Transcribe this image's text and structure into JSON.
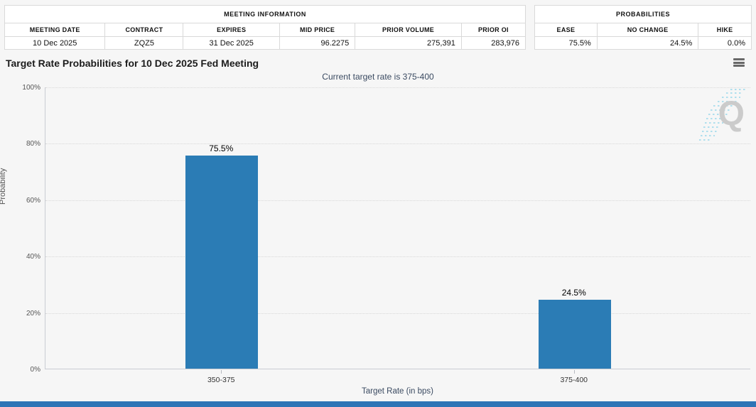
{
  "meeting_info_table": {
    "title": "MEETING INFORMATION",
    "columns": [
      "MEETING DATE",
      "CONTRACT",
      "EXPIRES",
      "MID PRICE",
      "PRIOR VOLUME",
      "PRIOR OI"
    ],
    "row": [
      "10 Dec 2025",
      "ZQZ5",
      "31 Dec 2025",
      "96.2275",
      "275,391",
      "283,976"
    ]
  },
  "probabilities_table": {
    "title": "PROBABILITIES",
    "columns": [
      "EASE",
      "NO CHANGE",
      "HIKE"
    ],
    "row": [
      "75.5%",
      "24.5%",
      "0.0%"
    ]
  },
  "chart_data": {
    "type": "bar",
    "title": "Target Rate Probabilities for 10 Dec 2025 Fed Meeting",
    "subtitle": "Current target rate is 375-400",
    "categories": [
      "350-375",
      "375-400"
    ],
    "values": [
      75.5,
      24.5
    ],
    "data_labels": [
      "75.5%",
      "24.5%"
    ],
    "xlabel": "Target Rate (in bps)",
    "ylabel": "Probability",
    "ylim": [
      0,
      100
    ],
    "yticks": [
      "0%",
      "20%",
      "40%",
      "60%",
      "80%",
      "100%"
    ],
    "grid": "horizontal-dotted",
    "legend": "none",
    "bar_color": "#2b7cb5"
  },
  "watermark": {
    "letter": "Q",
    "line_color": "#a8dded"
  },
  "colors": {
    "footer_bar": "#2e74b6",
    "page_background": "#f6f6f6"
  }
}
